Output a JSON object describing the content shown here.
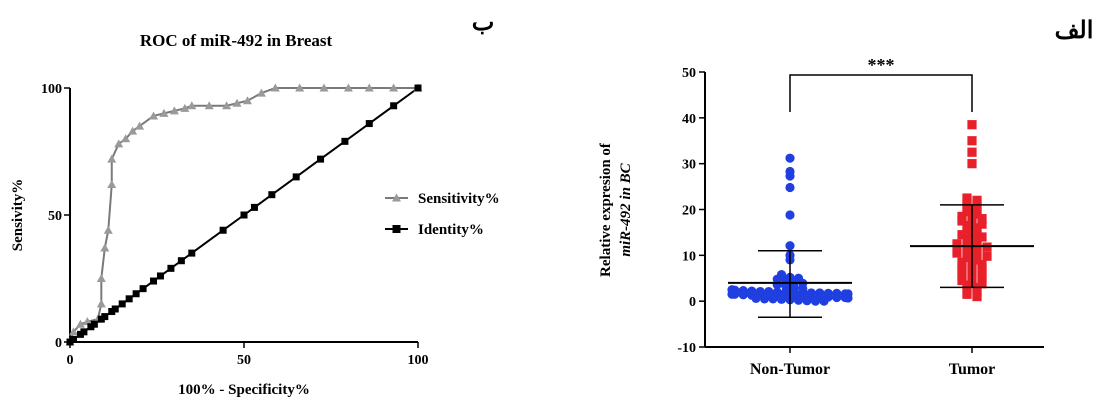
{
  "panel_labels": {
    "left": "ب",
    "right": "الف"
  },
  "chart_data": [
    {
      "type": "line",
      "title": "ROC of miR-492 in Breast",
      "xlabel": "100% - Specificity%",
      "ylabel": "Sensivity%",
      "xlim": [
        0,
        100
      ],
      "ylim": [
        0,
        100
      ],
      "x_ticks": [
        0,
        50,
        100
      ],
      "y_ticks": [
        0,
        50,
        100
      ],
      "grid": false,
      "legend_position": "right",
      "series": [
        {
          "name": "Sensitivity%",
          "marker": "triangle",
          "color": "#7a7a7a",
          "points": [
            [
              0,
              0
            ],
            [
              1,
              4
            ],
            [
              3,
              7
            ],
            [
              5,
              8
            ],
            [
              8,
              9
            ],
            [
              9,
              15
            ],
            [
              9,
              25
            ],
            [
              10,
              37
            ],
            [
              11,
              44
            ],
            [
              12,
              62
            ],
            [
              12,
              72
            ],
            [
              14,
              78
            ],
            [
              16,
              80
            ],
            [
              18,
              83
            ],
            [
              20,
              85
            ],
            [
              24,
              89
            ],
            [
              27,
              90
            ],
            [
              30,
              91
            ],
            [
              33,
              92
            ],
            [
              35,
              93
            ],
            [
              40,
              93
            ],
            [
              45,
              93
            ],
            [
              48,
              94
            ],
            [
              51,
              95
            ],
            [
              55,
              98
            ],
            [
              59,
              100
            ],
            [
              66,
              100
            ],
            [
              73,
              100
            ],
            [
              80,
              100
            ],
            [
              86,
              100
            ],
            [
              93,
              100
            ],
            [
              100,
              100
            ]
          ]
        },
        {
          "name": "Identity%",
          "marker": "square",
          "color": "#000000",
          "points": [
            [
              0,
              0
            ],
            [
              1,
              1
            ],
            [
              3,
              3
            ],
            [
              4,
              4
            ],
            [
              6,
              6
            ],
            [
              7,
              7
            ],
            [
              9,
              9
            ],
            [
              10,
              10
            ],
            [
              12,
              12
            ],
            [
              13,
              13
            ],
            [
              15,
              15
            ],
            [
              17,
              17
            ],
            [
              19,
              19
            ],
            [
              21,
              21
            ],
            [
              24,
              24
            ],
            [
              26,
              26
            ],
            [
              29,
              29
            ],
            [
              32,
              32
            ],
            [
              35,
              35
            ],
            [
              44,
              44
            ],
            [
              50,
              50
            ],
            [
              53,
              53
            ],
            [
              58,
              58
            ],
            [
              65,
              65
            ],
            [
              72,
              72
            ],
            [
              79,
              79
            ],
            [
              86,
              86
            ],
            [
              93,
              93
            ],
            [
              100,
              100
            ]
          ]
        }
      ]
    },
    {
      "type": "scatter",
      "ylabel_line1": "Relative expresion of",
      "ylabel_line2": "miR-492 in BC",
      "categories": [
        "Non-Tumor",
        "Tumor"
      ],
      "ylim": [
        -10,
        50
      ],
      "y_ticks": [
        -10,
        0,
        10,
        20,
        30,
        40,
        50
      ],
      "grid": false,
      "significance": "***",
      "series": [
        {
          "name": "Non-Tumor",
          "marker": "circle",
          "color": "#1f3fe0",
          "mean": 4.0,
          "sd_low": -3.5,
          "sd_high": 11.0,
          "values": [
            31.2,
            28.3,
            27.3,
            24.8,
            18.8,
            12.1,
            10.0,
            9.0,
            5.8,
            5.2,
            5.0,
            4.8,
            4.5,
            4.2,
            3.9,
            3.6,
            3.3,
            3.0,
            2.7,
            2.5,
            2.3,
            2.1,
            2.0,
            1.9,
            1.8,
            1.7,
            1.6,
            1.5,
            1.4,
            1.3,
            1.2,
            1.1,
            1.0,
            0.9,
            0.8,
            0.7,
            0.6,
            0.5,
            0.4,
            0.3,
            0.2,
            0.1,
            0.0,
            0.0,
            1.0,
            1.5,
            2.0,
            1.8,
            2.2,
            1.2,
            0.8,
            1.6,
            2.4,
            1.3,
            0.9,
            1.7,
            2.1,
            1.1,
            0.5,
            1.9
          ]
        },
        {
          "name": "Tumor",
          "marker": "square",
          "color": "#e8202a",
          "mean": 12.0,
          "sd_low": 3.0,
          "sd_high": 21.0,
          "values": [
            38.5,
            35.0,
            32.5,
            30.0,
            22.5,
            22.0,
            21.5,
            21.0,
            20.5,
            20.0,
            19.5,
            19.0,
            18.5,
            18.0,
            17.5,
            17.0,
            16.5,
            16.0,
            15.5,
            15.0,
            14.5,
            14.0,
            13.5,
            13.0,
            12.5,
            12.0,
            11.5,
            11.0,
            10.5,
            10.0,
            9.5,
            9.0,
            8.5,
            8.0,
            7.5,
            7.0,
            6.5,
            6.0,
            5.5,
            5.0,
            4.5,
            4.0,
            3.5,
            3.0,
            2.5,
            2.0,
            1.5,
            1.0,
            12.2,
            11.8,
            9.8,
            7.2,
            5.2,
            3.8,
            14.2,
            16.8,
            18.2,
            10.2,
            8.2,
            6.2
          ]
        }
      ]
    }
  ]
}
